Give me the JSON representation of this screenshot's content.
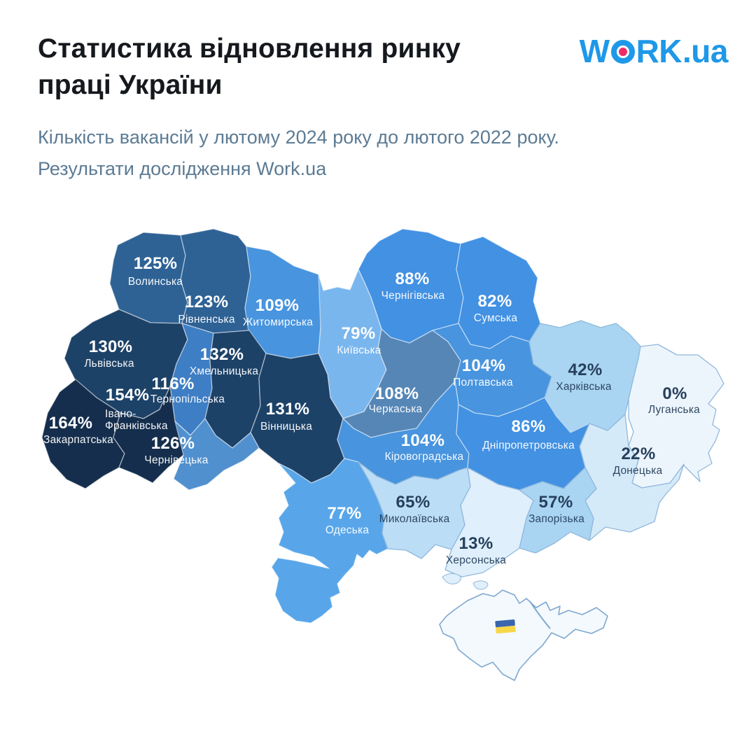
{
  "title": {
    "line1": "Статистика відновлення ринку",
    "line2": "праці України"
  },
  "subtitle": {
    "line1": "Кількість вакансій у лютому 2024 року до лютого 2022 року.",
    "line2": "Результати дослідження Work.ua"
  },
  "logo": {
    "prefix": "W",
    "middle": "RK",
    "suffix": ".ua",
    "blue": "#1E98E8",
    "pink": "#EE2D68"
  },
  "chart_data": {
    "type": "choropleth-map",
    "title": "Статистика відновлення ринку праці України",
    "unit": "%",
    "note": "Кількість вакансій у лютому 2024 року до лютого 2022 року. Результати дослідження Work.ua",
    "regions": [
      {
        "id": "volyn",
        "name": "Волинська",
        "value": 125,
        "value_label": "125%",
        "fill": "#2E6295",
        "text": "light"
      },
      {
        "id": "rivne",
        "name": "Рівненська",
        "value": 123,
        "value_label": "123%",
        "fill": "#2E6295",
        "text": "light"
      },
      {
        "id": "zhytomyr",
        "name": "Житомирська",
        "value": 109,
        "value_label": "109%",
        "fill": "#4894DE",
        "text": "light"
      },
      {
        "id": "chernihiv",
        "name": "Чернігівська",
        "value": 88,
        "value_label": "88%",
        "fill": "#4291E3",
        "text": "light"
      },
      {
        "id": "sumy",
        "name": "Сумська",
        "value": 82,
        "value_label": "82%",
        "fill": "#4291E3",
        "text": "light"
      },
      {
        "id": "kyiv",
        "name": "Київська",
        "value": 79,
        "value_label": "79%",
        "fill": "#7AB6EE",
        "text": "light"
      },
      {
        "id": "lviv",
        "name": "Львівська",
        "value": 130,
        "value_label": "130%",
        "fill": "#1D4268",
        "text": "light"
      },
      {
        "id": "ternopil",
        "name": "Тернопільська",
        "value": 116,
        "value_label": "116%",
        "fill": "#3E7EC4",
        "text": "light"
      },
      {
        "id": "khmelnytskyi",
        "name": "Хмельницька",
        "value": 132,
        "value_label": "132%",
        "fill": "#1D4268",
        "text": "light"
      },
      {
        "id": "vinnytsia",
        "name": "Вінницька",
        "value": 131,
        "value_label": "131%",
        "fill": "#1D4268",
        "text": "light"
      },
      {
        "id": "cherkasy",
        "name": "Черкаська",
        "value": 108,
        "value_label": "108%",
        "fill": "#5586B6",
        "text": "light"
      },
      {
        "id": "poltava",
        "name": "Полтавська",
        "value": 104,
        "value_label": "104%",
        "fill": "#4894DE",
        "text": "light"
      },
      {
        "id": "kharkiv",
        "name": "Харківська",
        "value": 42,
        "value_label": "42%",
        "fill": "#A9D5F3",
        "text": "dark"
      },
      {
        "id": "luhansk",
        "name": "Луганська",
        "value": 0,
        "value_label": "0%",
        "fill": "#EDF5FC",
        "text": "dark"
      },
      {
        "id": "zakarpattia",
        "name": "Закарпатська",
        "value": 164,
        "value_label": "164%",
        "fill": "#152E4D",
        "text": "light"
      },
      {
        "id": "ivano",
        "name": "Івано-Франківська",
        "value": 154,
        "value_label": "154%",
        "fill": "#152E4D",
        "text": "light",
        "name_lines": [
          "Івано-",
          "Франківська"
        ]
      },
      {
        "id": "chernivtsi",
        "name": "Чернівецька",
        "value": 126,
        "value_label": "126%",
        "fill": "#5190CE",
        "text": "light"
      },
      {
        "id": "kirovohrad",
        "name": "Кіровоградська",
        "value": 104,
        "value_label": "104%",
        "fill": "#4894DE",
        "text": "light"
      },
      {
        "id": "dnipro",
        "name": "Дніпропетровська",
        "value": 86,
        "value_label": "86%",
        "fill": "#4291E3",
        "text": "light"
      },
      {
        "id": "donetsk",
        "name": "Донецька",
        "value": 22,
        "value_label": "22%",
        "fill": "#D5EAF9",
        "text": "dark"
      },
      {
        "id": "odesa",
        "name": "Одеська",
        "value": 77,
        "value_label": "77%",
        "fill": "#58A6E9",
        "text": "light"
      },
      {
        "id": "mykolaiv",
        "name": "Миколаївська",
        "value": 65,
        "value_label": "65%",
        "fill": "#BCDDF6",
        "text": "dark"
      },
      {
        "id": "zaporizhzhia",
        "name": "Запорізька",
        "value": 57,
        "value_label": "57%",
        "fill": "#A9D5F3",
        "text": "dark"
      },
      {
        "id": "kherson",
        "name": "Херсонська",
        "value": 13,
        "value_label": "13%",
        "fill": "#DFEFFB",
        "text": "dark"
      }
    ]
  },
  "map": {
    "label_light_color": "#FFFFFF",
    "label_dark_color": "#26405C",
    "border_on_dark": "rgba(255,255,255,0.5)",
    "border_on_light": "#90B8DC",
    "crimea": {
      "fill": "#F3F9FD",
      "stroke": "#7FA8CF"
    },
    "flag": {
      "blue": "#3A66AD",
      "yellow": "#F8D748"
    }
  }
}
